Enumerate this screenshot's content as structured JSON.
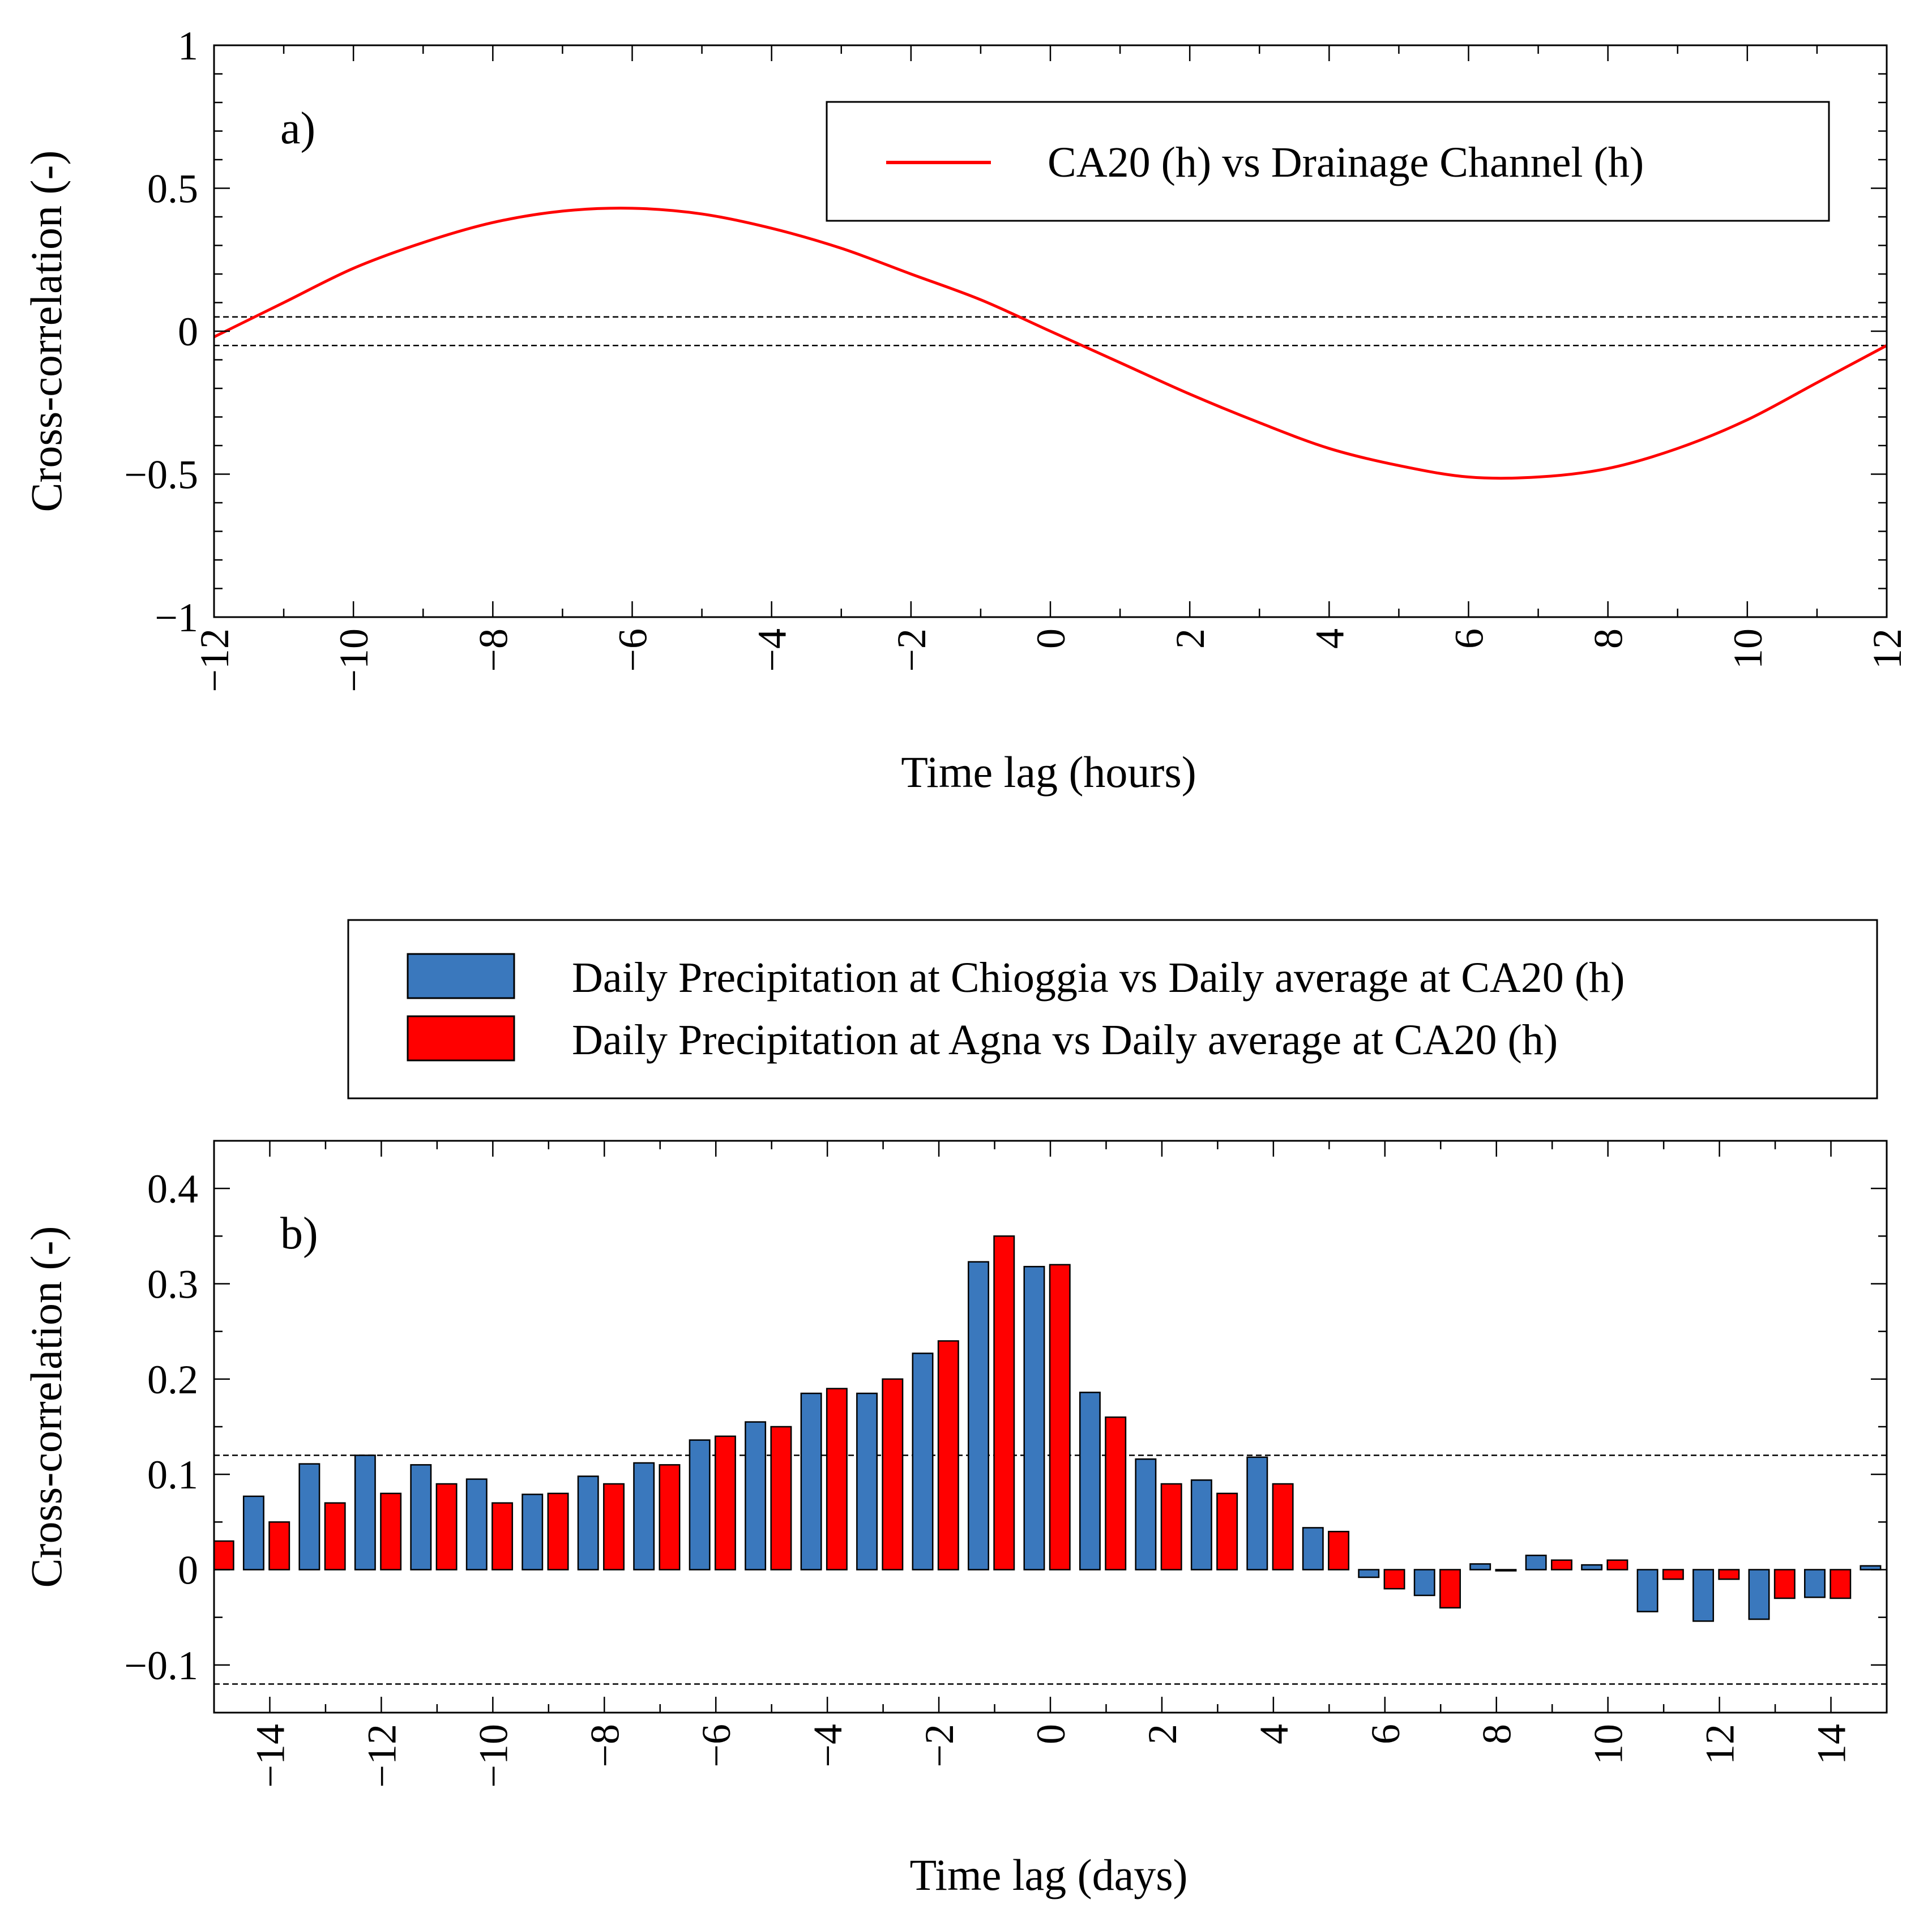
{
  "chart_data": [
    {
      "type": "line",
      "panel_label": "a)",
      "xlabel": "Time lag (hours)",
      "ylabel": "Cross-correlation (-)",
      "xlim": [
        -12,
        12
      ],
      "ylim": [
        -1,
        1
      ],
      "x_ticks": [
        -12,
        -10,
        -8,
        -6,
        -4,
        -2,
        0,
        2,
        4,
        6,
        8,
        10,
        12
      ],
      "x_tick_labels": [
        "−12",
        "−10",
        "−8",
        "−6",
        "−4",
        "−2",
        "0",
        "2",
        "4",
        "6",
        "8",
        "10",
        "12"
      ],
      "y_ticks": [
        -1,
        -0.5,
        0,
        0.5,
        1
      ],
      "y_tick_labels": [
        "−1",
        "−0.5",
        "0",
        "0.5",
        "1"
      ],
      "confidence_bounds": [
        -0.05,
        0.05
      ],
      "legend_position": "top-right",
      "series": [
        {
          "name": "CA20 (h) vs Drainage Channel (h)",
          "color": "#ff0000",
          "x": [
            -12,
            -11,
            -10,
            -9,
            -8,
            -7,
            -6,
            -5,
            -4,
            -3,
            -2,
            -1,
            0,
            1,
            2,
            3,
            4,
            5,
            6,
            7,
            8,
            9,
            10,
            11,
            12
          ],
          "values": [
            -0.02,
            0.1,
            0.22,
            0.31,
            0.38,
            0.42,
            0.43,
            0.41,
            0.36,
            0.29,
            0.2,
            0.11,
            0.0,
            -0.11,
            -0.22,
            -0.32,
            -0.41,
            -0.47,
            -0.51,
            -0.51,
            -0.48,
            -0.41,
            -0.31,
            -0.18,
            -0.05
          ]
        }
      ]
    },
    {
      "type": "bar",
      "panel_label": "b)",
      "xlabel": "Time lag (days)",
      "ylabel": "Cross-correlation (-)",
      "xlim": [
        -15,
        15
      ],
      "ylim": [
        -0.15,
        0.45
      ],
      "x_ticks": [
        -14,
        -12,
        -10,
        -8,
        -6,
        -4,
        -2,
        0,
        2,
        4,
        6,
        8,
        10,
        12,
        14
      ],
      "x_tick_labels": [
        "−14",
        "−12",
        "−10",
        "−8",
        "−6",
        "−4",
        "−2",
        "0",
        "2",
        "4",
        "6",
        "8",
        "10",
        "12",
        "14"
      ],
      "y_ticks": [
        -0.1,
        0,
        0.1,
        0.2,
        0.3,
        0.4
      ],
      "y_tick_labels": [
        "−0.1",
        "0",
        "0.1",
        "0.2",
        "0.3",
        "0.4"
      ],
      "confidence_bounds": [
        -0.12,
        0.12
      ],
      "legend_position": "above plot",
      "x": [
        -15,
        -14,
        -13,
        -12,
        -11,
        -10,
        -9,
        -8,
        -7,
        -6,
        -5,
        -4,
        -3,
        -2,
        -1,
        0,
        1,
        2,
        3,
        4,
        5,
        6,
        7,
        8,
        9,
        10,
        11,
        12,
        13,
        14,
        15
      ],
      "series": [
        {
          "name": "Daily Precipitation at Chioggia vs Daily average at CA20 (h)",
          "color": "#3a78bd",
          "values": [
            null,
            0.077,
            0.111,
            0.12,
            0.11,
            0.095,
            0.079,
            0.098,
            0.112,
            0.136,
            0.155,
            0.185,
            0.185,
            0.227,
            0.323,
            0.318,
            0.186,
            0.116,
            0.094,
            0.118,
            0.044,
            -0.008,
            -0.027,
            0.006,
            0.015,
            0.005,
            -0.044,
            -0.054,
            -0.052,
            -0.029,
            0.004
          ]
        },
        {
          "name": "Daily Precipitation at Agna vs Daily average at CA20 (h)",
          "color": "#ff0000",
          "values": [
            0.03,
            0.05,
            0.07,
            0.08,
            0.09,
            0.07,
            0.08,
            0.09,
            0.11,
            0.14,
            0.15,
            0.19,
            0.2,
            0.24,
            0.35,
            0.32,
            0.16,
            0.09,
            0.08,
            0.09,
            0.04,
            -0.02,
            -0.04,
            0.0,
            0.01,
            0.01,
            -0.01,
            -0.01,
            -0.03,
            -0.03,
            null
          ]
        }
      ]
    }
  ]
}
